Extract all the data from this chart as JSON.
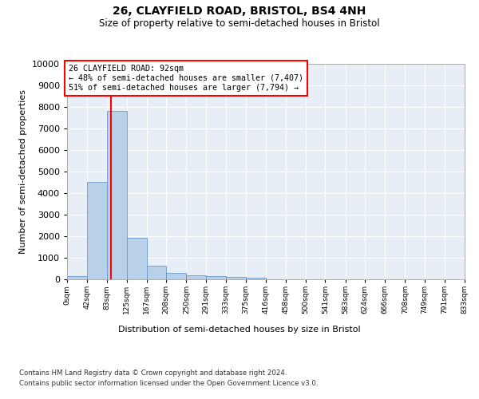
{
  "title": "26, CLAYFIELD ROAD, BRISTOL, BS4 4NH",
  "subtitle": "Size of property relative to semi-detached houses in Bristol",
  "xlabel": "Distribution of semi-detached houses by size in Bristol",
  "ylabel": "Number of semi-detached properties",
  "bar_color": "#b8d0e8",
  "bar_edge_color": "#6699cc",
  "background_color": "#e8eef5",
  "grid_color": "#ffffff",
  "property_line_x": 92,
  "annotation_title": "26 CLAYFIELD ROAD: 92sqm",
  "annotation_smaller": "← 48% of semi-detached houses are smaller (7,407)",
  "annotation_larger": "51% of semi-detached houses are larger (7,794) →",
  "bin_edges": [
    0,
    42,
    83,
    125,
    167,
    208,
    250,
    291,
    333,
    375,
    416,
    458,
    500,
    541,
    583,
    624,
    666,
    708,
    749,
    791,
    833
  ],
  "bin_counts": [
    130,
    4500,
    7800,
    1930,
    620,
    280,
    170,
    140,
    110,
    80,
    0,
    0,
    0,
    0,
    0,
    0,
    0,
    0,
    0,
    0
  ],
  "ylim": [
    0,
    10000
  ],
  "yticks": [
    0,
    1000,
    2000,
    3000,
    4000,
    5000,
    6000,
    7000,
    8000,
    9000,
    10000
  ],
  "tick_labels": [
    "0sqm",
    "42sqm",
    "83sqm",
    "125sqm",
    "167sqm",
    "208sqm",
    "250sqm",
    "291sqm",
    "333sqm",
    "375sqm",
    "416sqm",
    "458sqm",
    "500sqm",
    "541sqm",
    "583sqm",
    "624sqm",
    "666sqm",
    "708sqm",
    "749sqm",
    "791sqm",
    "833sqm"
  ],
  "footer_line1": "Contains HM Land Registry data © Crown copyright and database right 2024.",
  "footer_line2": "Contains public sector information licensed under the Open Government Licence v3.0."
}
